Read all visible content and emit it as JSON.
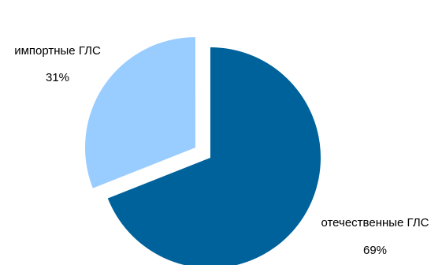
{
  "chart_data": {
    "type": "pie",
    "slices": [
      {
        "label": "отечественные ГЛС",
        "value": 69,
        "value_label": "69%",
        "color": "#00629B",
        "exploded": false
      },
      {
        "label": "импортные ГЛС",
        "value": 31,
        "value_label": "31%",
        "color": "#99CCFF",
        "exploded": true
      }
    ],
    "legend": "none"
  }
}
